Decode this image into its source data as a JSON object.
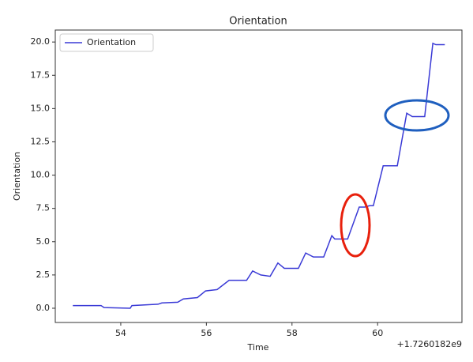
{
  "chart_data": {
    "type": "line",
    "title": "Orientation",
    "xlabel": "Time",
    "ylabel": "Orientation",
    "x_offset_label": "+1.7260182e9",
    "x": [
      52.88,
      53.54,
      53.61,
      54.22,
      54.26,
      54.87,
      54.96,
      55.33,
      55.46,
      55.79,
      55.98,
      56.25,
      56.53,
      56.94,
      57.08,
      57.27,
      57.49,
      57.67,
      57.82,
      58.15,
      58.32,
      58.5,
      58.74,
      58.93,
      59.0,
      59.3,
      59.57,
      59.7,
      59.81,
      59.9,
      60.13,
      60.46,
      60.68,
      60.81,
      61.1,
      61.29,
      61.36,
      61.57
    ],
    "series": [
      {
        "name": "Orientation",
        "color": "#3a3ad6",
        "values": [
          0.2,
          0.2,
          0.05,
          0.0,
          0.2,
          0.3,
          0.4,
          0.45,
          0.7,
          0.8,
          1.3,
          1.4,
          2.1,
          2.1,
          2.8,
          2.5,
          2.4,
          3.4,
          3.0,
          3.0,
          4.15,
          3.85,
          3.85,
          5.45,
          5.2,
          5.2,
          7.6,
          7.6,
          7.7,
          7.7,
          10.7,
          10.7,
          14.65,
          14.4,
          14.4,
          19.9,
          19.8,
          19.8
        ]
      }
    ],
    "xlim": [
      52.47,
      61.97
    ],
    "xticks": [
      54,
      56,
      58,
      60
    ],
    "ylim": [
      -1.07,
      20.9
    ],
    "yticks": [
      {
        "value": 0,
        "label": "0.0"
      },
      2.5,
      {
        "value": 5,
        "label": "5.0"
      },
      7.5,
      {
        "value": 10,
        "label": "10.0"
      },
      12.5,
      {
        "value": 15,
        "label": "15.0"
      },
      17.5,
      {
        "value": 20,
        "label": "20.0"
      }
    ],
    "grid": false,
    "legend": "upper left"
  }
}
